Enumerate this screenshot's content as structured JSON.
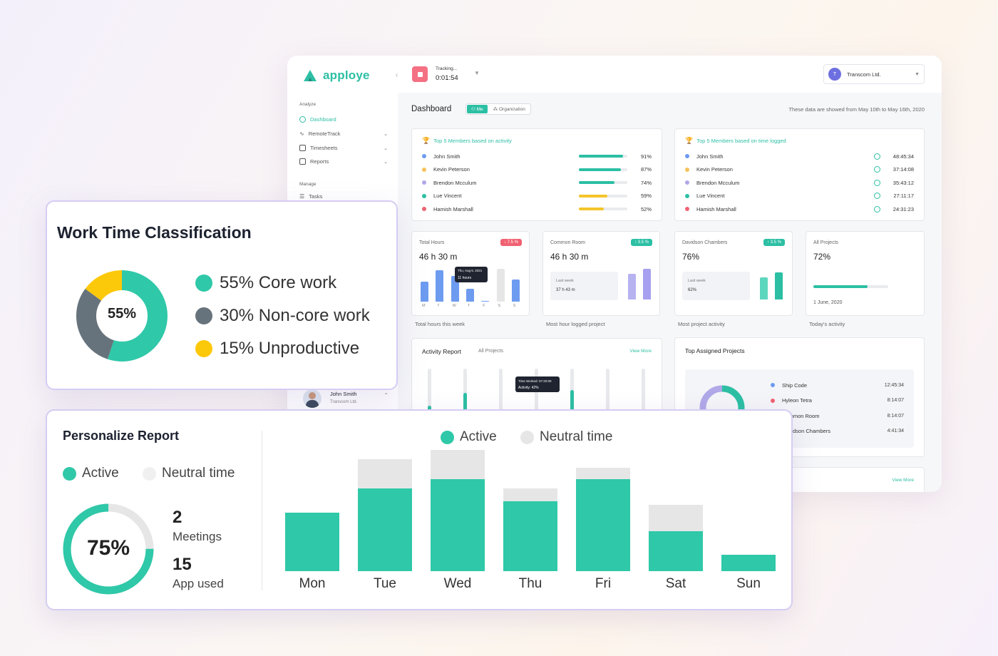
{
  "sidebar": {
    "brand": "apploye",
    "analyze_label": "Analyze",
    "items": [
      {
        "label": "Dashboard",
        "active": true
      },
      {
        "label": "RemoteTrack",
        "chevron": true
      },
      {
        "label": "Timesheets",
        "chevron": true
      },
      {
        "label": "Reports",
        "chevron": true
      }
    ],
    "manage_label": "Manage",
    "manage_items": [
      {
        "label": "Tasks"
      }
    ],
    "user": {
      "name": "John Smith",
      "company": "Transcom Ltd."
    }
  },
  "topbar": {
    "tracking_label": "Tracking...",
    "tracking_time": "0:01:54",
    "company_initial": "T",
    "company_name": "Transcom Ltd."
  },
  "dashboard": {
    "title": "Dashboard",
    "toggle_me": "Me",
    "toggle_org": "Organization",
    "date_info": "These data are showed from May 10th to May 16th, 2020"
  },
  "top_activity": {
    "title": "Top 5 Members based on activity",
    "members": [
      {
        "name": "John Smith",
        "pct_label": "91%",
        "pct": 0.91,
        "dot": "#6d9bf0",
        "bar": "#2cbfa4"
      },
      {
        "name": "Kevin Peterson",
        "pct_label": "87%",
        "pct": 0.87,
        "dot": "#f4c25a",
        "bar": "#2cbfa4"
      },
      {
        "name": "Brendon Mcculum",
        "pct_label": "74%",
        "pct": 0.74,
        "dot": "#b0a9e8",
        "bar": "#2cbfa4"
      },
      {
        "name": "Lue Vincent",
        "pct_label": "59%",
        "pct": 0.59,
        "dot": "#2cbfa4",
        "bar": "#f4c52a"
      },
      {
        "name": "Hamish Marshall",
        "pct_label": "52%",
        "pct": 0.52,
        "dot": "#f06272",
        "bar": "#f4c52a"
      }
    ]
  },
  "top_time": {
    "title": "Top 5 Members based on time logged",
    "members": [
      {
        "name": "John Smith",
        "time": "48:45:34",
        "dot": "#6d9bf0"
      },
      {
        "name": "Kevin Peterson",
        "time": "37:14:08",
        "dot": "#f4c25a"
      },
      {
        "name": "Brendon Mcculum",
        "time": "35:43:12",
        "dot": "#b0a9e8"
      },
      {
        "name": "Lue Vincent",
        "time": "27:11:17",
        "dot": "#2cbfa4"
      },
      {
        "name": "Hamish Marshall",
        "time": "24:31:23",
        "dot": "#f06272"
      }
    ]
  },
  "stats": [
    {
      "label": "Total Hours",
      "value": "46 h 30 m",
      "badge": "↓ 7.5 %",
      "under": "Total hours this week",
      "tooltip_date": "Thu, Aug 5, 2021",
      "tooltip_val": "11 hours",
      "days": [
        "M",
        "T",
        "W",
        "T",
        "F",
        "S",
        "S"
      ]
    },
    {
      "label": "Common Room",
      "value": "46 h 30 m",
      "badge": "↑ 3.5 %",
      "under": "Most hour logged project",
      "last_week_label": "Last week",
      "last_week_value": "37 h 43 m"
    },
    {
      "label": "Davidson Chambers",
      "value": "76%",
      "badge": "↑ 3.5 %",
      "under": "Most project activity",
      "last_week_label": "Last week",
      "last_week_value": "62%"
    },
    {
      "label": "All Projects",
      "value": "72%",
      "progress": 0.72,
      "date": "1 June, 2020",
      "under": "Today's activity"
    }
  ],
  "activity_report": {
    "title": "Activity Report",
    "filter": "All Projects",
    "view_more": "View More",
    "tooltip_line1": "Time Worked: 07:20:00",
    "tooltip_line2": "Activity: 42%"
  },
  "assigned": {
    "title": "Top Assigned Projects",
    "projects": [
      {
        "name": "Ship Code",
        "time": "12:45:34",
        "dot": "#6d9bf0"
      },
      {
        "name": "Hyleon Tetra",
        "time": "8:14:07",
        "dot": "#f06272"
      },
      {
        "name": "Common Room",
        "time": "8:14:07",
        "dot": "#b0a9e8"
      },
      {
        "name": "Davidson Chambers",
        "time": "4:41:34",
        "dot": "#2cbfa4"
      }
    ],
    "view_more": "View More"
  },
  "work_time": {
    "title": "Work Time Classification",
    "center": "55%",
    "segments": [
      {
        "label": "55% Core work",
        "value": 55,
        "color": "#2fc8a8"
      },
      {
        "label": "30% Non-core work",
        "value": 30,
        "color": "#67737c"
      },
      {
        "label": "15% Unproductive",
        "value": 15,
        "color": "#fcc80a"
      }
    ]
  },
  "personalize": {
    "title": "Personalize Report",
    "legend_active": "Active",
    "legend_neutral": "Neutral time",
    "ring_pct": "75%",
    "ring_value": 0.75,
    "meetings_count": "2",
    "meetings_label": "Meetings",
    "apps_count": "15",
    "apps_label": "App used",
    "colors": {
      "active": "#2fc8a8",
      "neutral": "#e6e6e6"
    }
  },
  "chart_data": {
    "type": "bar",
    "stacked": true,
    "categories": [
      "Mon",
      "Tue",
      "Wed",
      "Thu",
      "Fri",
      "Sat",
      "Sun"
    ],
    "series": [
      {
        "name": "Active",
        "values": [
          50,
          71,
          79,
          60,
          79,
          34,
          14
        ]
      },
      {
        "name": "Neutral time",
        "values": [
          0,
          25,
          25,
          11,
          10,
          23,
          0
        ]
      }
    ],
    "ylim": [
      0,
      104
    ],
    "legend": "top"
  }
}
